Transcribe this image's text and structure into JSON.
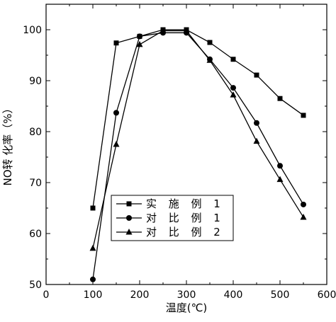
{
  "chart_data": {
    "type": "line",
    "title": "",
    "xlabel": "温度(℃)",
    "ylabel": "NO转 化率（%）",
    "xlim": [
      0,
      600
    ],
    "ylim": [
      50,
      105
    ],
    "xticks": [
      0,
      100,
      200,
      300,
      400,
      500,
      600
    ],
    "yticks": [
      50,
      60,
      70,
      80,
      90,
      100
    ],
    "grid": false,
    "legend_position": "lower-left",
    "series": [
      {
        "name": "实 施 例 1",
        "marker": "square",
        "color": "#000000",
        "x": [
          100,
          150,
          200,
          250,
          300,
          350,
          400,
          450,
          500,
          550
        ],
        "y": [
          65.0,
          97.4,
          98.7,
          100.0,
          100.0,
          97.5,
          94.2,
          91.1,
          86.5,
          83.2
        ]
      },
      {
        "name": "对 比 例 1",
        "marker": "circle",
        "color": "#000000",
        "x": [
          100,
          150,
          200,
          250,
          300,
          350,
          400,
          450,
          500,
          550
        ],
        "y": [
          51.0,
          83.7,
          98.7,
          99.4,
          99.4,
          94.2,
          88.6,
          81.7,
          73.3,
          65.7
        ]
      },
      {
        "name": "对 比 例 2",
        "marker": "triangle",
        "color": "#000000",
        "x": [
          100,
          150,
          200,
          250,
          300,
          350,
          400,
          450,
          500,
          550
        ],
        "y": [
          57.1,
          77.5,
          97.1,
          99.8,
          99.8,
          94.0,
          87.2,
          78.1,
          70.6,
          63.2
        ]
      }
    ]
  }
}
